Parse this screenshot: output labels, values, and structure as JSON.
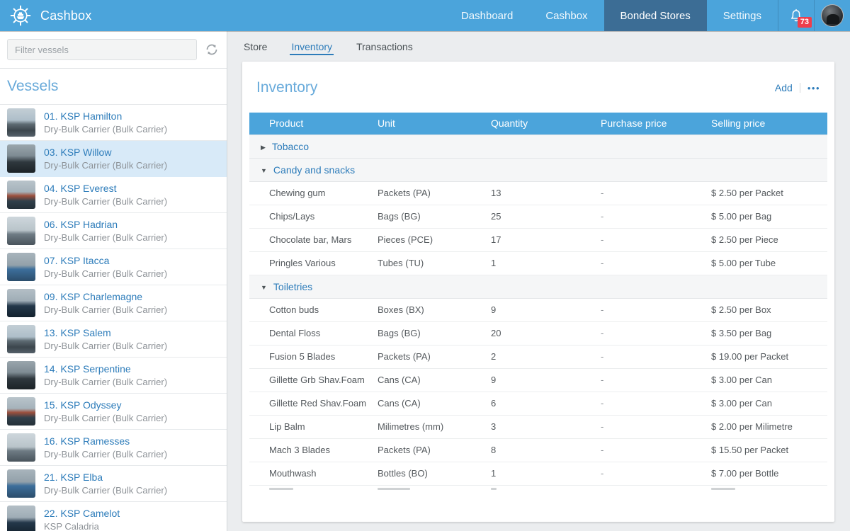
{
  "app": {
    "brand": "Cashbox"
  },
  "nav": {
    "items": [
      {
        "label": "Dashboard",
        "active": false
      },
      {
        "label": "Cashbox",
        "active": false
      },
      {
        "label": "Bonded Stores",
        "active": true
      },
      {
        "label": "Settings",
        "active": false
      }
    ],
    "notification_count": "73"
  },
  "icons": {
    "logo": "ship-wheel",
    "notifications": "bell",
    "filter_refresh": "refresh",
    "group_expanded": "▼",
    "group_collapsed": "▶",
    "more": "•••"
  },
  "sidebar": {
    "filter_placeholder": "Filter vessels",
    "title": "Vessels",
    "vessels": [
      {
        "name": "01. KSP Hamilton",
        "subtitle": "Dry-Bulk Carrier (Bulk Carrier)",
        "selected": false
      },
      {
        "name": "03. KSP Willow",
        "subtitle": "Dry-Bulk Carrier (Bulk Carrier)",
        "selected": true
      },
      {
        "name": "04. KSP Everest",
        "subtitle": "Dry-Bulk Carrier (Bulk Carrier)",
        "selected": false
      },
      {
        "name": "06. KSP Hadrian",
        "subtitle": "Dry-Bulk Carrier (Bulk Carrier)",
        "selected": false
      },
      {
        "name": "07. KSP Itacca",
        "subtitle": "Dry-Bulk Carrier (Bulk Carrier)",
        "selected": false
      },
      {
        "name": "09. KSP Charlemagne",
        "subtitle": "Dry-Bulk Carrier (Bulk Carrier)",
        "selected": false
      },
      {
        "name": "13. KSP Salem",
        "subtitle": "Dry-Bulk Carrier (Bulk Carrier)",
        "selected": false
      },
      {
        "name": "14. KSP Serpentine",
        "subtitle": "Dry-Bulk Carrier (Bulk Carrier)",
        "selected": false
      },
      {
        "name": "15. KSP Odyssey",
        "subtitle": "Dry-Bulk Carrier (Bulk Carrier)",
        "selected": false
      },
      {
        "name": "16. KSP Ramesses",
        "subtitle": "Dry-Bulk Carrier (Bulk Carrier)",
        "selected": false
      },
      {
        "name": "21. KSP Elba",
        "subtitle": "Dry-Bulk Carrier (Bulk Carrier)",
        "selected": false
      },
      {
        "name": "22. KSP Camelot",
        "subtitle": "KSP Caladria",
        "selected": false
      }
    ]
  },
  "main": {
    "tabs": [
      {
        "label": "Store",
        "active": false
      },
      {
        "label": "Inventory",
        "active": true
      },
      {
        "label": "Transactions",
        "active": false
      }
    ],
    "card": {
      "title": "Inventory",
      "add_label": "Add",
      "more_label": "•••"
    },
    "table": {
      "columns": [
        "Product",
        "Unit",
        "Quantity",
        "Purchase price",
        "Selling price"
      ],
      "groups": [
        {
          "name": "Tobacco",
          "expanded": false,
          "items": []
        },
        {
          "name": "Candy and snacks",
          "expanded": true,
          "items": [
            {
              "product": "Chewing gum",
              "unit": "Packets (PA)",
              "quantity": "13",
              "purchase_price": "-",
              "selling_price": "$ 2.50 per Packet"
            },
            {
              "product": "Chips/Lays",
              "unit": "Bags (BG)",
              "quantity": "25",
              "purchase_price": "-",
              "selling_price": "$ 5.00 per Bag"
            },
            {
              "product": "Chocolate bar, Mars",
              "unit": "Pieces (PCE)",
              "quantity": "17",
              "purchase_price": "-",
              "selling_price": "$ 2.50 per Piece"
            },
            {
              "product": "Pringles Various",
              "unit": "Tubes (TU)",
              "quantity": "1",
              "purchase_price": "-",
              "selling_price": "$ 5.00 per Tube"
            }
          ]
        },
        {
          "name": "Toiletries",
          "expanded": true,
          "items": [
            {
              "product": "Cotton buds",
              "unit": "Boxes (BX)",
              "quantity": "9",
              "purchase_price": "-",
              "selling_price": "$ 2.50 per Box"
            },
            {
              "product": "Dental Floss",
              "unit": "Bags (BG)",
              "quantity": "20",
              "purchase_price": "-",
              "selling_price": "$ 3.50 per Bag"
            },
            {
              "product": "Fusion 5 Blades",
              "unit": "Packets (PA)",
              "quantity": "2",
              "purchase_price": "-",
              "selling_price": "$ 19.00 per Packet"
            },
            {
              "product": "Gillette Grb Shav.Foam",
              "unit": "Cans (CA)",
              "quantity": "9",
              "purchase_price": "-",
              "selling_price": "$ 3.00 per Can"
            },
            {
              "product": "Gillette Red Shav.Foam",
              "unit": "Cans (CA)",
              "quantity": "6",
              "purchase_price": "-",
              "selling_price": "$ 3.00 per Can"
            },
            {
              "product": "Lip Balm",
              "unit": "Milimetres (mm)",
              "quantity": "3",
              "purchase_price": "-",
              "selling_price": "$ 2.00 per Milimetre"
            },
            {
              "product": "Mach 3 Blades",
              "unit": "Packets (PA)",
              "quantity": "8",
              "purchase_price": "-",
              "selling_price": "$ 15.50 per Packet"
            },
            {
              "product": "Mouthwash",
              "unit": "Bottles (BO)",
              "quantity": "1",
              "purchase_price": "-",
              "selling_price": "$ 7.00 per Bottle"
            }
          ]
        }
      ],
      "partial_next_row_visible": true
    }
  },
  "colors": {
    "topbar": "#4ba4db",
    "nav_active_bg": "#3c6d95",
    "badge_red": "#ee3e4c",
    "accent_blue": "#2d7cba",
    "section_title_blue": "#69abdb",
    "selected_vessel_bg": "#d8eaf8",
    "table_header_bg": "#4ba4db",
    "page_bg": "#ebedef"
  }
}
